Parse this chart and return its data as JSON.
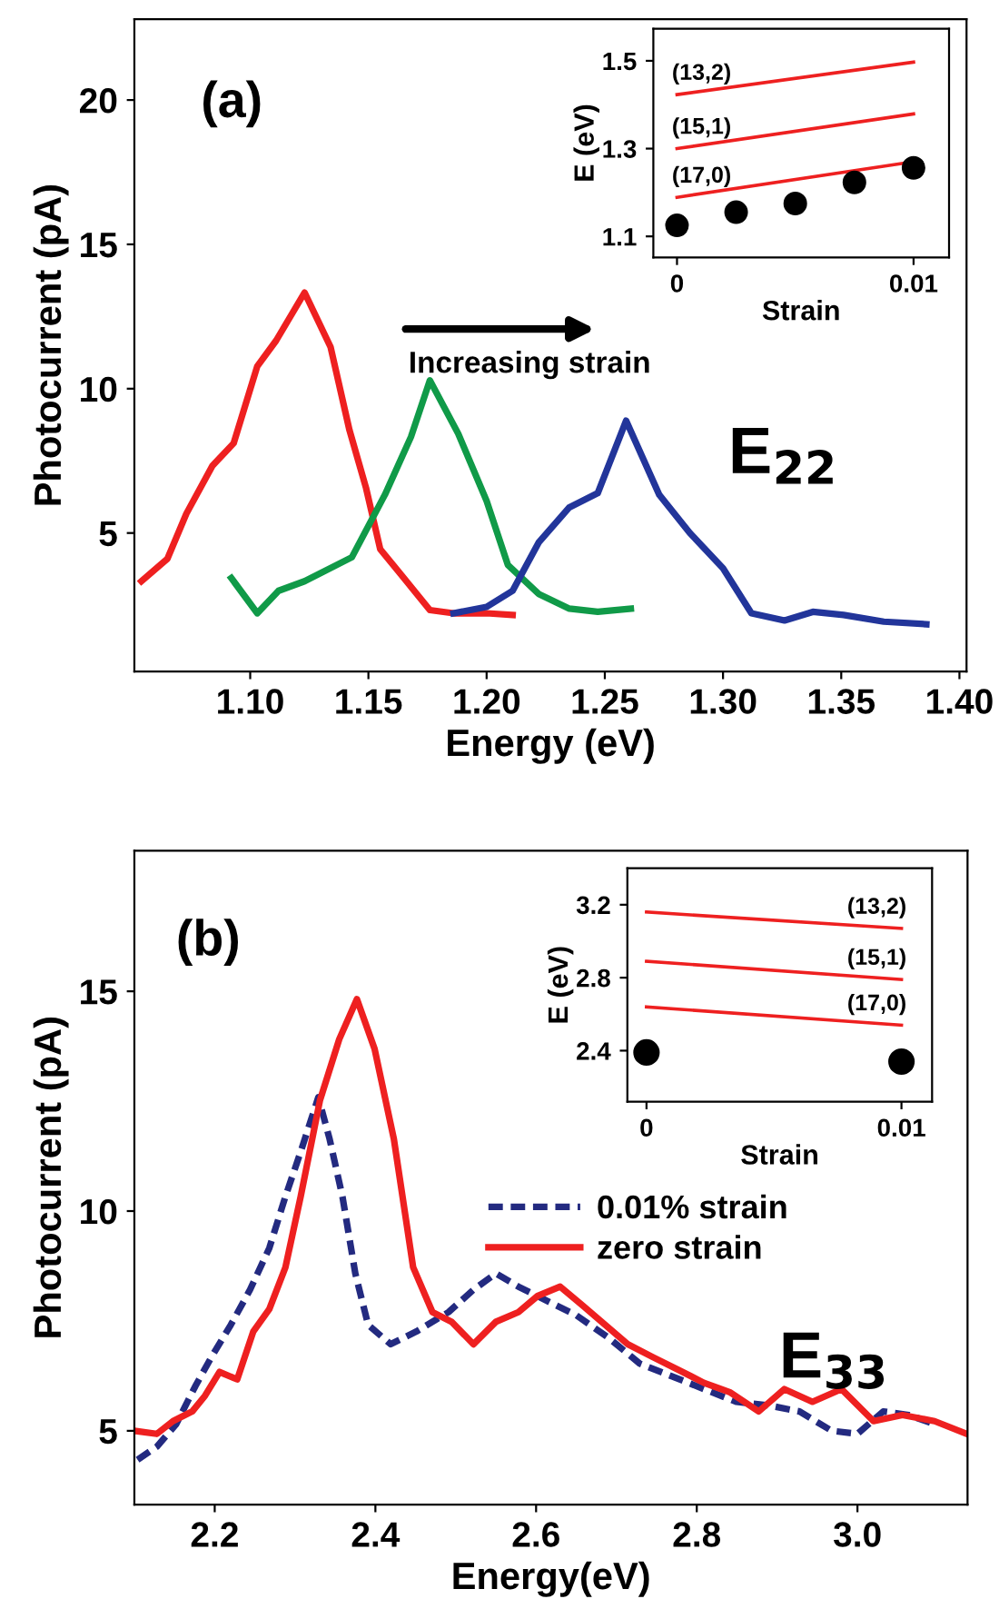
{
  "chart_data": [
    {
      "type": "line",
      "xlabel": "Energy (eV)",
      "ylabel": "Photocurrent (pA)",
      "xlim": [
        1.051,
        1.403
      ],
      "ylim": [
        0.2,
        22.8
      ],
      "xticks": [
        {
          "value": 1.1,
          "label": "1.10"
        },
        {
          "value": 1.15,
          "label": "1.15"
        },
        {
          "value": 1.2,
          "label": "1.20"
        },
        {
          "value": 1.25,
          "label": "1.25"
        },
        {
          "value": 1.3,
          "label": "1.30"
        },
        {
          "value": 1.35,
          "label": "1.35"
        },
        {
          "value": 1.4,
          "label": "1.40"
        }
      ],
      "yticks": [
        5,
        10,
        15,
        20
      ],
      "grid": false,
      "legend": false,
      "marker": "none",
      "line_style": "solid",
      "annotations": [
        "(a)",
        "Increasing strain",
        "E$_{22}$"
      ],
      "series": [
        {
          "color": "#ee2020",
          "x": [
            1.054,
            1.065,
            1.073,
            1.084,
            1.093,
            1.103,
            1.111,
            1.123,
            1.134,
            1.142,
            1.149,
            1.155,
            1.165,
            1.176,
            1.186,
            1.2,
            1.211
          ],
          "values": [
            3.33,
            4.11,
            5.67,
            7.33,
            8.11,
            10.78,
            11.67,
            13.33,
            11.44,
            8.56,
            6.56,
            4.44,
            3.44,
            2.33,
            2.22,
            2.22,
            2.16
          ]
        },
        {
          "color": "#109a48",
          "x": [
            1.092,
            1.103,
            1.112,
            1.123,
            1.143,
            1.157,
            1.168,
            1.176,
            1.188,
            1.2,
            1.209,
            1.222,
            1.235,
            1.247,
            1.261
          ],
          "values": [
            3.44,
            2.22,
            3.0,
            3.33,
            4.16,
            6.33,
            8.33,
            10.29,
            8.44,
            6.11,
            3.89,
            2.89,
            2.38,
            2.27,
            2.38
          ]
        },
        {
          "color": "#22359a",
          "x": [
            1.186,
            1.2,
            1.211,
            1.222,
            1.235,
            1.247,
            1.259,
            1.273,
            1.286,
            1.3,
            1.312,
            1.326,
            1.338,
            1.351,
            1.368,
            1.386
          ],
          "values": [
            2.22,
            2.44,
            3.0,
            4.67,
            5.89,
            6.38,
            8.89,
            6.33,
            5.0,
            3.78,
            2.22,
            1.97,
            2.27,
            2.16,
            1.93,
            1.84
          ]
        }
      ]
    },
    {
      "type": "line",
      "xlabel": "Strain",
      "ylabel": "E (eV)",
      "xlim": [
        -0.001,
        0.0115
      ],
      "ylim": [
        1.052,
        1.573
      ],
      "xticks": [
        0,
        0.01
      ],
      "yticks": [
        1.1,
        1.3,
        1.5
      ],
      "grid": false,
      "legend": false,
      "series": [
        {
          "name": "(13,2)",
          "color": "#ee2020",
          "x": [
            0,
            0.01
          ],
          "values": [
            1.423,
            1.497
          ]
        },
        {
          "name": "(15,1)",
          "color": "#ee2020",
          "x": [
            0,
            0.01
          ],
          "values": [
            1.3,
            1.379
          ]
        },
        {
          "name": "(17,0)",
          "color": "#ee2020",
          "x": [
            0,
            0.01
          ],
          "values": [
            1.189,
            1.27
          ]
        },
        {
          "type": "scatter",
          "marker": "circle",
          "color": "#000000",
          "x": [
            0,
            0.0025,
            0.005,
            0.0075,
            0.01
          ],
          "values": [
            1.125,
            1.155,
            1.175,
            1.223,
            1.256
          ]
        }
      ]
    },
    {
      "type": "line",
      "xlabel": "Energy(eV)",
      "ylabel": "Photocurrent (pA)",
      "xlim": [
        2.1,
        3.137
      ],
      "ylim": [
        3.32,
        18.2
      ],
      "xticks": [
        2.2,
        2.4,
        2.6,
        2.8,
        {
          "value": 3.0,
          "label": "3.0"
        }
      ],
      "yticks": [
        5,
        10,
        15
      ],
      "grid": false,
      "legend": "right",
      "marker": "none",
      "annotations": [
        "(b)",
        "E$_{33}$"
      ],
      "series": [
        {
          "name": "0.01% strain",
          "color": "#232a80",
          "line_style": "dashed",
          "x": [
            2.104,
            2.128,
            2.152,
            2.176,
            2.196,
            2.22,
            2.244,
            2.268,
            2.288,
            2.307,
            2.329,
            2.343,
            2.359,
            2.375,
            2.391,
            2.419,
            2.451,
            2.491,
            2.522,
            2.55,
            2.578,
            2.61,
            2.65,
            2.69,
            2.729,
            2.769,
            2.809,
            2.849,
            2.889,
            2.928,
            2.968,
            3.0,
            3.032,
            3.064,
            3.096
          ],
          "values": [
            4.34,
            4.64,
            5.15,
            6.02,
            6.68,
            7.41,
            8.21,
            9.16,
            10.33,
            11.35,
            12.59,
            11.64,
            10.33,
            8.58,
            7.41,
            6.97,
            7.26,
            7.7,
            8.21,
            8.58,
            8.28,
            7.99,
            7.63,
            7.12,
            6.53,
            6.24,
            5.95,
            5.66,
            5.58,
            5.44,
            5.0,
            4.93,
            5.44,
            5.36,
            5.15
          ]
        },
        {
          "name": "zero strain",
          "color": "#ee2020",
          "line_style": "solid",
          "x": [
            2.1,
            2.128,
            2.148,
            2.172,
            2.188,
            2.206,
            2.228,
            2.248,
            2.268,
            2.288,
            2.307,
            2.331,
            2.355,
            2.377,
            2.399,
            2.423,
            2.447,
            2.471,
            2.495,
            2.522,
            2.55,
            2.578,
            2.602,
            2.63,
            2.658,
            2.686,
            2.714,
            2.745,
            2.777,
            2.809,
            2.841,
            2.877,
            2.909,
            2.944,
            2.98,
            3.02,
            3.056,
            3.096,
            3.136
          ],
          "values": [
            5.0,
            4.93,
            5.22,
            5.44,
            5.8,
            6.34,
            6.17,
            7.26,
            7.77,
            8.72,
            10.33,
            12.52,
            13.91,
            14.82,
            13.69,
            11.64,
            8.72,
            7.7,
            7.48,
            6.97,
            7.48,
            7.7,
            8.07,
            8.28,
            7.85,
            7.41,
            6.97,
            6.68,
            6.39,
            6.09,
            5.88,
            5.44,
            5.95,
            5.66,
            5.95,
            5.22,
            5.36,
            5.22,
            4.93
          ]
        }
      ]
    },
    {
      "type": "line",
      "xlabel": "Strain",
      "ylabel": "E (eV)",
      "xlim": [
        -0.00075,
        0.0112
      ],
      "ylim": [
        2.12,
        3.4
      ],
      "xticks": [
        0,
        0.01
      ],
      "yticks": [
        2.4,
        2.8,
        3.2
      ],
      "grid": false,
      "legend": false,
      "series": [
        {
          "name": "(13,2)",
          "color": "#ee2020",
          "x": [
            0,
            0.01
          ],
          "values": [
            3.16,
            3.07
          ]
        },
        {
          "name": "(15,1)",
          "color": "#ee2020",
          "x": [
            0,
            0.01
          ],
          "values": [
            2.89,
            2.79
          ]
        },
        {
          "name": "(17,0)",
          "color": "#ee2020",
          "x": [
            0,
            0.01
          ],
          "values": [
            2.64,
            2.54
          ]
        },
        {
          "type": "scatter",
          "marker": "circle",
          "color": "#000000",
          "x": [
            0,
            0.01
          ],
          "values": [
            2.39,
            2.34
          ]
        }
      ]
    }
  ]
}
